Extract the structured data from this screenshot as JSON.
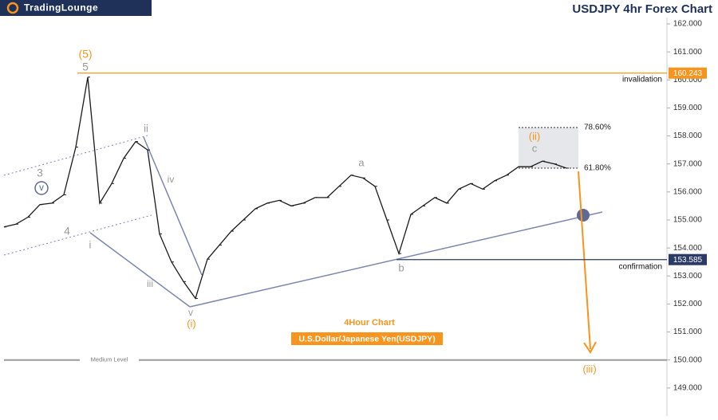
{
  "chart_data": {
    "type": "line",
    "title": "USDJPY 4hr Forex Chart",
    "brand": "TradingLounge",
    "subtitle": "4Hour Chart",
    "instrument": "U.S.Dollar/Japanese Yen(USDJPY)",
    "color": "#1a1a1a",
    "values": [
      154.75,
      154.85,
      155.1,
      155.55,
      155.6,
      155.9,
      157.6,
      160.1,
      155.6,
      156.3,
      157.2,
      157.8,
      157.5,
      154.5,
      153.5,
      152.8,
      152.2,
      153.6,
      154.1,
      154.6,
      155.0,
      155.4,
      155.6,
      155.7,
      155.5,
      155.6,
      155.8,
      155.8,
      156.2,
      156.6,
      156.5,
      156.2,
      155.0,
      153.8,
      155.2,
      155.5,
      155.8,
      155.6,
      156.1,
      156.3,
      156.1,
      156.4,
      156.6,
      156.9,
      156.9,
      157.1,
      157.0,
      156.85
    ],
    "ylim": [
      148.0,
      162.853
    ],
    "yticks": [
      {
        "value": 149,
        "label": "149.000"
      },
      {
        "value": 150,
        "label": "150.000"
      },
      {
        "value": 151,
        "label": "151.000"
      },
      {
        "value": 152,
        "label": "152.000"
      },
      {
        "value": 153,
        "label": "153.000"
      },
      {
        "value": 154,
        "label": "154.000"
      },
      {
        "value": 155,
        "label": "155.000"
      },
      {
        "value": 156,
        "label": "156.000"
      },
      {
        "value": 157,
        "label": "157.000"
      },
      {
        "value": 158,
        "label": "158.000"
      },
      {
        "value": 159,
        "label": "159.000"
      },
      {
        "value": 160,
        "label": "160.000"
      },
      {
        "value": 161,
        "label": "161.000"
      },
      {
        "value": 162,
        "label": "162.000"
      }
    ],
    "levels": [
      {
        "value": 160.243,
        "name": "invalidation",
        "color": "#f7941d"
      },
      {
        "value": 153.585,
        "name": "confirmation",
        "color": "#2b3a67"
      },
      {
        "value": 150.0,
        "name": "Medium Level",
        "color": "#9a9a9a"
      }
    ],
    "fib_levels": [
      {
        "value": 158.3,
        "label": "78.60%"
      },
      {
        "value": 156.85,
        "label": "61.80%"
      }
    ],
    "wave_labels": [
      "(5)",
      "5",
      "3",
      "v",
      "4",
      "i",
      "ii",
      "iv",
      "iii",
      "v",
      "(i)",
      "a",
      "b",
      "c",
      "(ii)",
      "(iii)"
    ]
  }
}
